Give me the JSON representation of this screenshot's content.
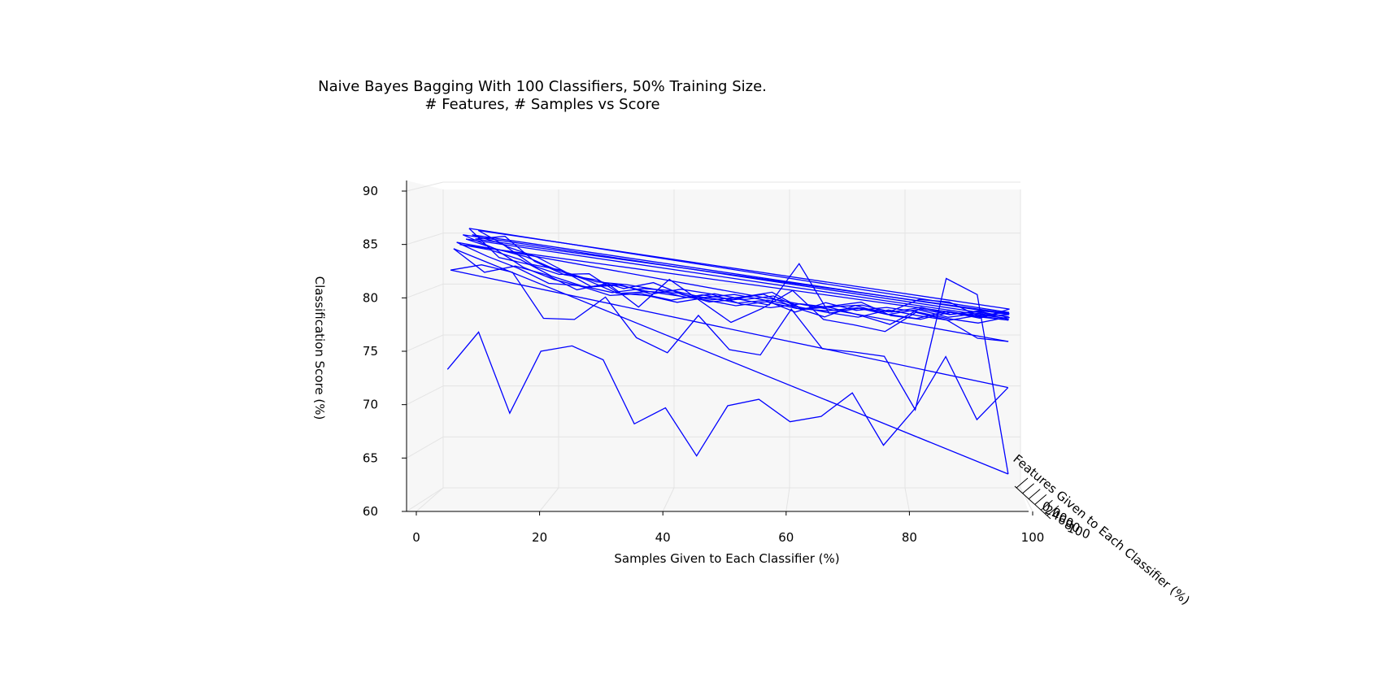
{
  "chart_data": {
    "type": "line",
    "title_line1": "Naive Bayes Bagging With 100 Classifiers, 50% Training Size.",
    "title_line2": "# Features, # Samples vs Score",
    "xlabel": "Samples Given to Each Classifier (%)",
    "ylabel": "Features Given to Each Classifier (%)",
    "zlabel": "Classification Score (%)",
    "xlim": [
      0,
      100
    ],
    "zlim": [
      60,
      90
    ],
    "x_ticks": [
      "0",
      "20",
      "40",
      "60",
      "80",
      "100"
    ],
    "z_ticks": [
      "60",
      "65",
      "70",
      "75",
      "80",
      "85",
      "90"
    ],
    "y_ticks_overlapping": [
      "0",
      "20",
      "40",
      "60",
      "80",
      "100"
    ],
    "grid": true,
    "samples": [
      5,
      10,
      15,
      20,
      25,
      30,
      35,
      40,
      45,
      50,
      55,
      60,
      65,
      70,
      75,
      80,
      85,
      90,
      95
    ],
    "series": [
      {
        "values": [
          73.3,
          76.8,
          69.2,
          75.0,
          75.5,
          74.2,
          68.2,
          69.7,
          65.2,
          69.9,
          70.5,
          68.4,
          68.9,
          71.1,
          66.2,
          69.6,
          74.5,
          68.6,
          71.6
        ]
      },
      {
        "values": [
          82.5,
          83.0,
          82.3,
          78.0,
          77.9,
          80.0,
          76.2,
          74.8,
          78.3,
          75.1,
          74.6,
          78.9,
          75.2,
          74.9,
          74.5,
          69.5,
          81.8,
          80.3,
          63.5
        ]
      },
      {
        "values": [
          84.4,
          82.2,
          82.8,
          82.0,
          80.6,
          81.2,
          79.0,
          81.6,
          79.6,
          77.6,
          78.9,
          80.6,
          77.9,
          77.4,
          76.8,
          78.6,
          77.9,
          76.2,
          75.9
        ]
      },
      {
        "values": [
          84.9,
          83.6,
          82.5,
          81.1,
          80.9,
          80.0,
          80.2,
          79.6,
          80.1,
          79.7,
          80.2,
          79.0,
          78.1,
          79.2,
          78.4,
          78.0,
          78.7,
          78.2,
          77.9
        ]
      },
      {
        "values": [
          84.6,
          84.1,
          83.2,
          81.7,
          80.8,
          80.2,
          80.6,
          80.4,
          79.8,
          80.1,
          79.6,
          78.5,
          79.4,
          78.7,
          79.0,
          78.6,
          78.0,
          77.6,
          78.2
        ]
      },
      {
        "values": [
          85.4,
          84.2,
          82.4,
          81.3,
          80.6,
          80.9,
          80.3,
          79.9,
          79.5,
          79.0,
          79.4,
          78.8,
          78.6,
          78.9,
          78.3,
          78.8,
          78.1,
          78.5,
          78.0
        ]
      },
      {
        "values": [
          84.9,
          84.0,
          83.3,
          82.1,
          81.2,
          80.0,
          79.8,
          79.2,
          79.7,
          79.2,
          79.5,
          78.9,
          78.4,
          78.0,
          78.7,
          78.2,
          77.8,
          78.3,
          78.6
        ]
      },
      {
        "values": [
          85.8,
          83.1,
          82.5,
          81.6,
          81.7,
          79.9,
          80.1,
          80.0,
          79.2,
          79.5,
          79.0,
          82.9,
          78.3,
          78.8,
          78.5,
          79.7,
          79.5,
          78.2,
          78.4
        ]
      },
      {
        "values": [
          85.1,
          84.3,
          82.4,
          81.9,
          80.4,
          80.6,
          79.8,
          80.3,
          79.9,
          79.0,
          78.7,
          79.1,
          78.8,
          78.1,
          77.3,
          78.8,
          78.3,
          78.7,
          78.5
        ]
      },
      {
        "values": [
          84.6,
          84.9,
          82.6,
          81.4,
          81.0,
          80.2,
          80.8,
          79.7,
          79.3,
          79.6,
          80.1,
          78.6,
          78.9,
          79.3,
          78.1,
          77.8,
          78.5,
          78.0,
          78.9
        ]
      },
      {
        "values": [
          85.3,
          83.8,
          82.9,
          81.5,
          80.7,
          80.5,
          80.1,
          79.4,
          79.8,
          79.3,
          79.7,
          78.5,
          78.8,
          79.0,
          78.4,
          78.9,
          78.3,
          78.6,
          78.1
        ]
      }
    ]
  }
}
